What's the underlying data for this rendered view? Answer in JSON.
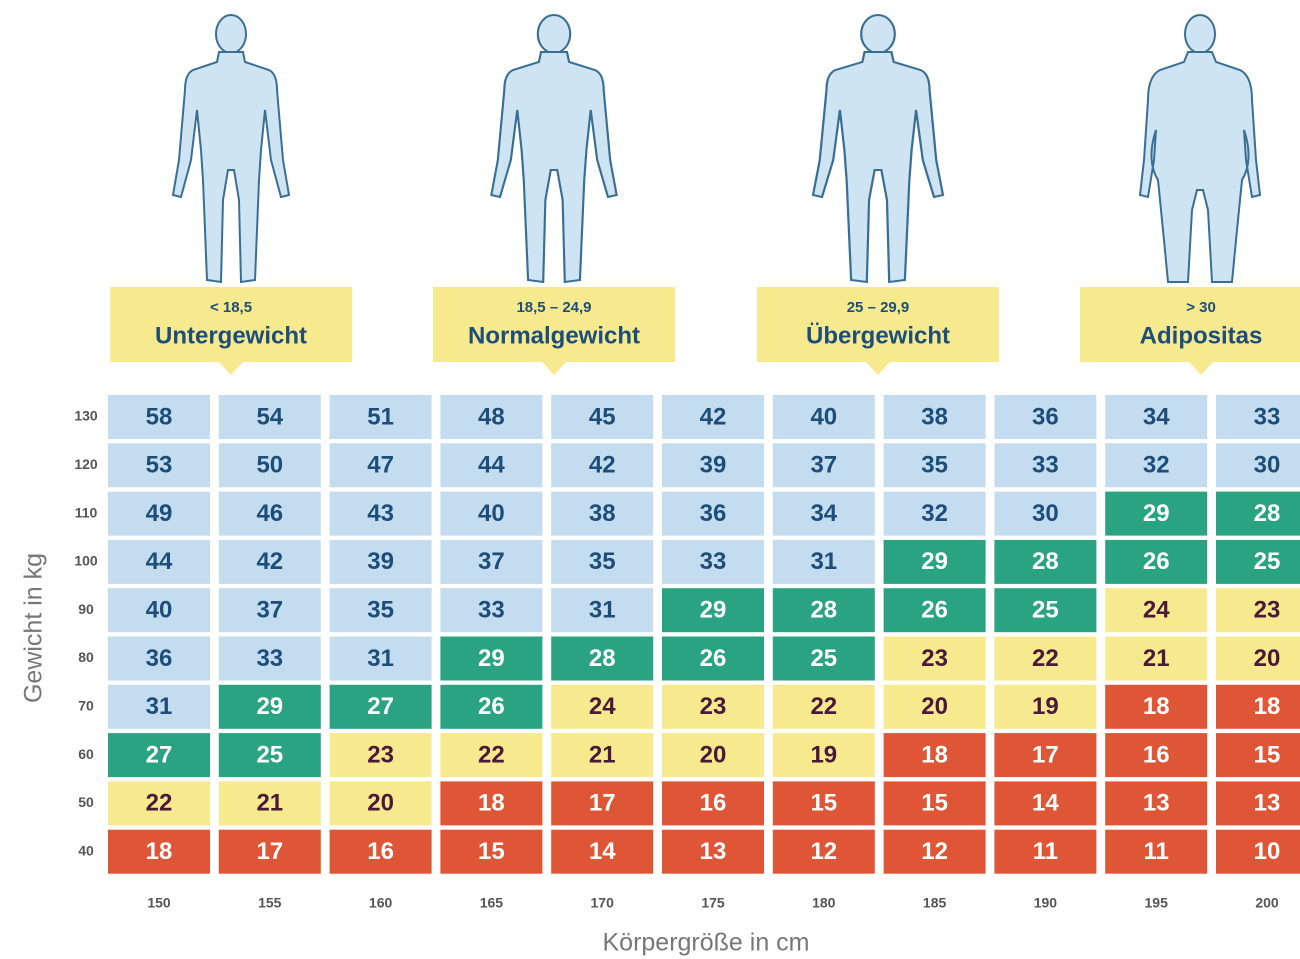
{
  "classes": [
    {
      "range": "< 18,5",
      "label": "Untergewicht",
      "from": null,
      "color": "#df5636",
      "text_color": "#ffffff"
    },
    {
      "range": "18,5 – 24,9",
      "label": "Normalgewicht",
      "from": 18.5,
      "color": "#f7e98e",
      "text_color": "#4a1838"
    },
    {
      "range": "25 – 29,9",
      "label": "Übergewicht",
      "from": 25,
      "color": "#2aa383",
      "text_color": "#ffffff"
    },
    {
      "range": "> 30",
      "label": "Adipositas",
      "from": 30,
      "color": "#c4dcef",
      "text_color": "#1d4e79"
    }
  ],
  "table": {
    "y_axis_title": "Gewicht in kg",
    "x_axis_title": "Körpergröße in cm",
    "columns": [
      "150",
      "155",
      "160",
      "165",
      "170",
      "175",
      "180",
      "185",
      "190",
      "195",
      "200"
    ],
    "rows": [
      {
        "weight": "130",
        "cells": [
          58,
          54,
          51,
          48,
          45,
          42,
          40,
          38,
          36,
          34,
          33
        ]
      },
      {
        "weight": "120",
        "cells": [
          53,
          50,
          47,
          44,
          42,
          39,
          37,
          35,
          33,
          32,
          30
        ]
      },
      {
        "weight": "110",
        "cells": [
          49,
          46,
          43,
          40,
          38,
          36,
          34,
          32,
          30,
          29,
          28
        ]
      },
      {
        "weight": "100",
        "cells": [
          44,
          42,
          39,
          37,
          35,
          33,
          31,
          29,
          28,
          26,
          25
        ]
      },
      {
        "weight": "90",
        "cells": [
          40,
          37,
          35,
          33,
          31,
          29,
          28,
          26,
          25,
          24,
          23
        ]
      },
      {
        "weight": "80",
        "cells": [
          36,
          33,
          31,
          29,
          28,
          26,
          25,
          23,
          22,
          21,
          20
        ]
      },
      {
        "weight": "70",
        "cells": [
          31,
          29,
          27,
          26,
          24,
          23,
          22,
          20,
          19,
          18,
          18
        ]
      },
      {
        "weight": "60",
        "cells": [
          27,
          25,
          23,
          22,
          21,
          20,
          19,
          18,
          17,
          16,
          15
        ]
      },
      {
        "weight": "50",
        "cells": [
          22,
          21,
          20,
          18,
          17,
          16,
          15,
          15,
          14,
          13,
          13
        ]
      },
      {
        "weight": "40",
        "cells": [
          18,
          17,
          16,
          15,
          14,
          13,
          12,
          12,
          11,
          11,
          10
        ]
      }
    ]
  }
}
